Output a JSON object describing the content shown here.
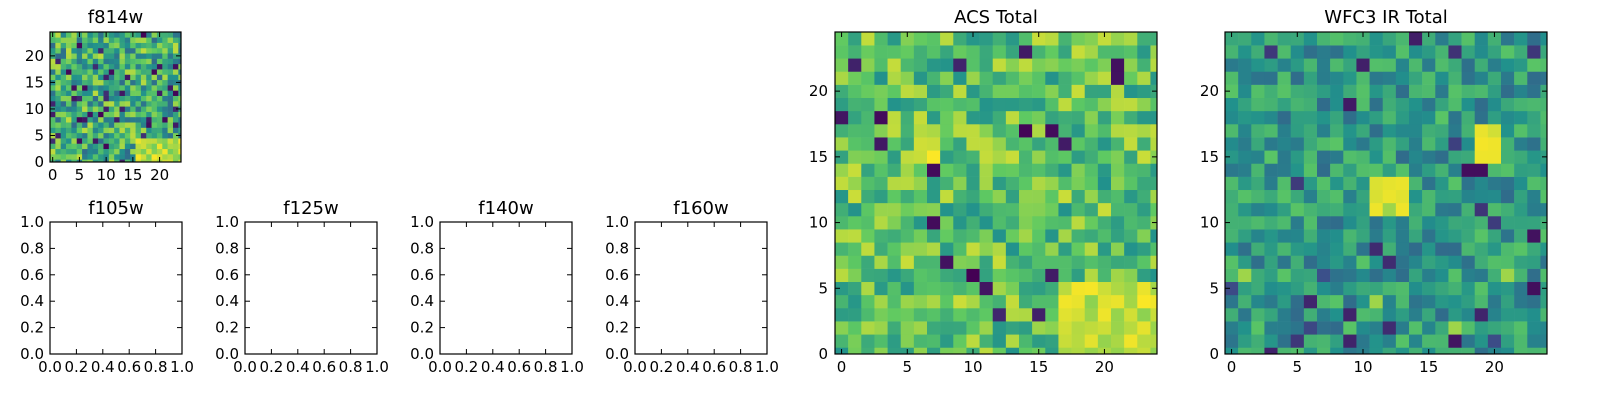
{
  "chart_data": [
    {
      "id": "f814w",
      "type": "heatmap",
      "title": "f814w",
      "grid_size": 25,
      "colormap": "viridis",
      "origin": "lower",
      "xticks": [
        "0",
        "5",
        "10",
        "15",
        "20"
      ],
      "yticks": [
        "0",
        "5",
        "10",
        "15",
        "20"
      ],
      "note": "noisy image with a bright patch near the lower right"
    },
    {
      "id": "f105w",
      "type": "heatmap",
      "title": "f105w",
      "empty": true,
      "xlim": [
        0.0,
        1.0
      ],
      "ylim": [
        0.0,
        1.0
      ],
      "xticks": [
        "0.0",
        "0.2",
        "0.4",
        "0.6",
        "0.8",
        "1.0"
      ],
      "yticks": [
        "0.0",
        "0.2",
        "0.4",
        "0.6",
        "0.8",
        "1.0"
      ]
    },
    {
      "id": "f125w",
      "type": "heatmap",
      "title": "f125w",
      "empty": true,
      "xlim": [
        0.0,
        1.0
      ],
      "ylim": [
        0.0,
        1.0
      ],
      "xticks": [
        "0.0",
        "0.2",
        "0.4",
        "0.6",
        "0.8",
        "1.0"
      ],
      "yticks": [
        "0.0",
        "0.2",
        "0.4",
        "0.6",
        "0.8",
        "1.0"
      ]
    },
    {
      "id": "f140w",
      "type": "heatmap",
      "title": "f140w",
      "empty": true,
      "xlim": [
        0.0,
        1.0
      ],
      "ylim": [
        0.0,
        1.0
      ],
      "xticks": [
        "0.0",
        "0.2",
        "0.4",
        "0.6",
        "0.8",
        "1.0"
      ],
      "yticks": [
        "0.0",
        "0.2",
        "0.4",
        "0.6",
        "0.8",
        "1.0"
      ]
    },
    {
      "id": "f160w",
      "type": "heatmap",
      "title": "f160w",
      "empty": true,
      "xlim": [
        0.0,
        1.0
      ],
      "ylim": [
        0.0,
        1.0
      ],
      "xticks": [
        "0.0",
        "0.2",
        "0.4",
        "0.6",
        "0.8",
        "1.0"
      ],
      "yticks": [
        "0.0",
        "0.2",
        "0.4",
        "0.6",
        "0.8",
        "1.0"
      ]
    },
    {
      "id": "acs-total",
      "type": "heatmap",
      "title": "ACS Total",
      "grid_size": 25,
      "colormap": "viridis",
      "origin": "lower",
      "xticks": [
        "0",
        "5",
        "10",
        "15",
        "20"
      ],
      "yticks": [
        "0",
        "5",
        "10",
        "15",
        "20"
      ],
      "note": "generally high (green-yellow) values with scattered dark pixels; bright region at lower right"
    },
    {
      "id": "wfc3-ir-total",
      "type": "heatmap",
      "title": "WFC3 IR Total",
      "grid_size": 25,
      "colormap": "viridis",
      "origin": "lower",
      "xticks": [
        "0",
        "5",
        "10",
        "15",
        "20"
      ],
      "yticks": [
        "0",
        "5",
        "10",
        "15",
        "20"
      ],
      "note": "mostly mid (teal) values with bright blobs near (12, 12) and (20, 16)"
    }
  ]
}
